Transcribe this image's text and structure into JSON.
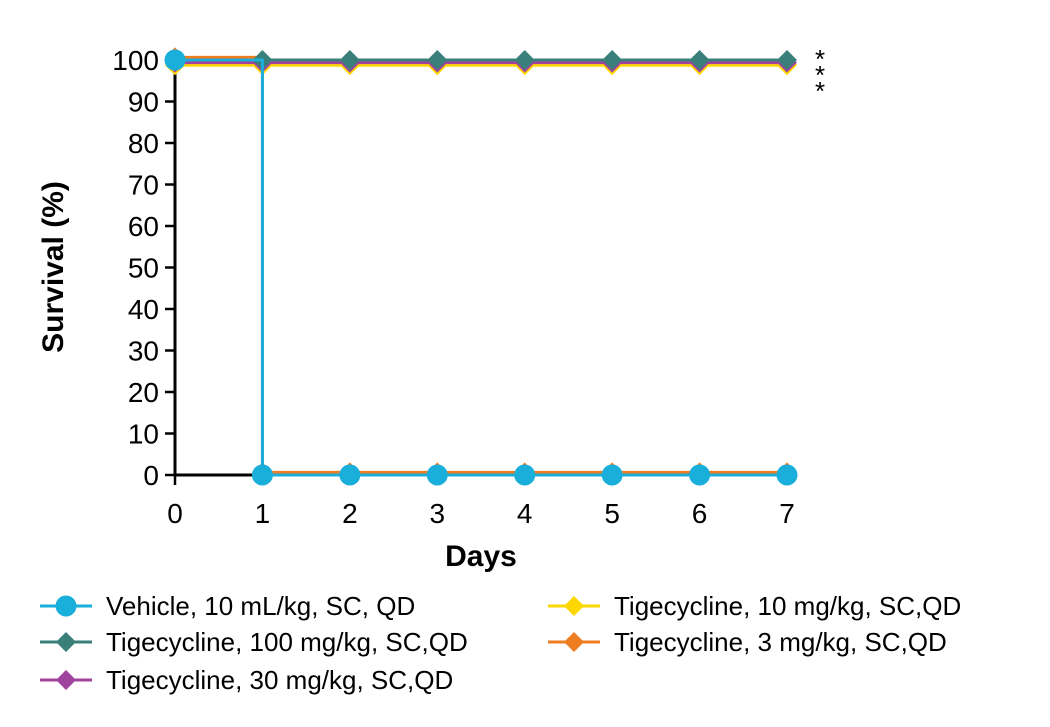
{
  "chart_data": {
    "type": "line",
    "step": true,
    "title": "",
    "xlabel": "Days",
    "ylabel": "Survival (%)",
    "xlim": [
      0,
      7
    ],
    "ylim": [
      0,
      100
    ],
    "xticks": [
      0,
      1,
      2,
      3,
      4,
      5,
      6,
      7
    ],
    "yticks": [
      0,
      10,
      20,
      30,
      40,
      50,
      60,
      70,
      80,
      90,
      100
    ],
    "x": [
      0,
      1,
      2,
      3,
      4,
      5,
      6,
      7
    ],
    "grid": false,
    "legend_position": "bottom",
    "annotations": [
      "*",
      "*",
      "*"
    ],
    "series": [
      {
        "name": "Vehicle, 10 mL/kg, SC, QD",
        "color": "#1AAEDB",
        "marker": "circle",
        "values": [
          100,
          0,
          0,
          0,
          0,
          0,
          0,
          0
        ]
      },
      {
        "name": "Tigecycline, 100 mg/kg, SC,QD",
        "color": "#3A7F7A",
        "marker": "diamond",
        "values": [
          100,
          100,
          100,
          100,
          100,
          100,
          100,
          100
        ]
      },
      {
        "name": "Tigecycline, 30 mg/kg, SC,QD",
        "color": "#A0439E",
        "marker": "diamond",
        "values": [
          100,
          100,
          100,
          100,
          100,
          100,
          100,
          100
        ]
      },
      {
        "name": "Tigecycline, 10 mg/kg, SC,QD",
        "color": "#FFD700",
        "marker": "diamond",
        "values": [
          100,
          100,
          100,
          100,
          100,
          100,
          100,
          100
        ]
      },
      {
        "name": "Tigecycline, 3 mg/kg, SC,QD",
        "color": "#EE7D21",
        "marker": "diamond",
        "values": [
          100,
          0,
          0,
          0,
          0,
          0,
          0,
          0
        ]
      }
    ]
  }
}
